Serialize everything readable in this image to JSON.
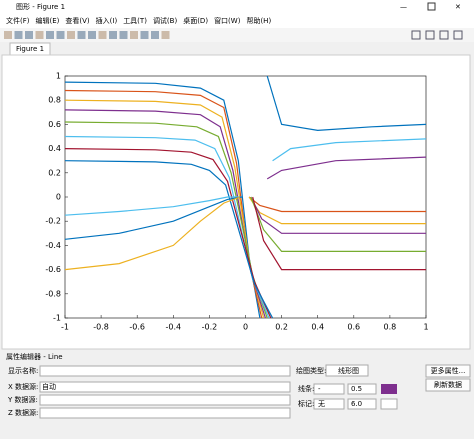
{
  "window": {
    "title": "图形 - Figure 1"
  },
  "menu": [
    "文件(F)",
    "编辑(E)",
    "查看(V)",
    "插入(I)",
    "工具(T)",
    "调试(B)",
    "桌面(D)",
    "窗口(W)",
    "帮助(H)"
  ],
  "tab": "Figure 1",
  "chart_data": {
    "type": "line",
    "xlim": [
      -1,
      1
    ],
    "ylim": [
      -1,
      1
    ],
    "xticks": [
      -1,
      -0.8,
      -0.6,
      -0.4,
      -0.2,
      0,
      0.2,
      0.4,
      0.6,
      0.8,
      1
    ],
    "yticks": [
      -1,
      -0.8,
      -0.6,
      -0.4,
      -0.2,
      0,
      0.2,
      0.4,
      0.6,
      0.8,
      1
    ],
    "series": [
      {
        "color": "#0072bd",
        "x": [
          -1,
          -0.5,
          -0.25,
          -0.12,
          -0.04,
          0.02,
          0.08
        ],
        "values": [
          0.95,
          0.94,
          0.9,
          0.8,
          0.3,
          -0.5,
          -1
        ]
      },
      {
        "color": "#d95319",
        "x": [
          -1,
          -0.5,
          -0.25,
          -0.12,
          -0.05,
          0.02,
          0.09
        ],
        "values": [
          0.88,
          0.87,
          0.84,
          0.74,
          0.28,
          -0.55,
          -1
        ]
      },
      {
        "color": "#edb120",
        "x": [
          -1,
          -0.5,
          -0.25,
          -0.13,
          -0.06,
          0.03,
          0.1
        ],
        "values": [
          0.8,
          0.79,
          0.76,
          0.66,
          0.25,
          -0.6,
          -1
        ]
      },
      {
        "color": "#7e2f8e",
        "x": [
          -1,
          -0.5,
          -0.25,
          -0.14,
          -0.07,
          0.03,
          0.11
        ],
        "values": [
          0.72,
          0.71,
          0.68,
          0.58,
          0.22,
          -0.62,
          -1
        ]
      },
      {
        "color": "#77ac30",
        "x": [
          -1,
          -0.5,
          -0.27,
          -0.15,
          -0.08,
          0.04,
          0.12
        ],
        "values": [
          0.62,
          0.61,
          0.58,
          0.5,
          0.2,
          -0.65,
          -1
        ]
      },
      {
        "color": "#4dbeee",
        "x": [
          -1,
          -0.5,
          -0.28,
          -0.17,
          -0.09,
          0.04,
          0.13
        ],
        "values": [
          0.5,
          0.49,
          0.47,
          0.4,
          0.16,
          -0.68,
          -1
        ]
      },
      {
        "color": "#a2142f",
        "x": [
          -1,
          -0.5,
          -0.3,
          -0.18,
          -0.1,
          0.05,
          0.14
        ],
        "values": [
          0.4,
          0.39,
          0.37,
          0.31,
          0.13,
          -0.7,
          -1
        ]
      },
      {
        "color": "#0072bd",
        "x": [
          -1,
          -0.5,
          -0.3,
          -0.2,
          -0.11,
          0.05,
          0.15
        ],
        "values": [
          0.3,
          0.29,
          0.27,
          0.22,
          0.1,
          -0.72,
          -1
        ]
      },
      {
        "color": "#d95319",
        "x": [
          0.02,
          0.08,
          0.2,
          0.5,
          1
        ],
        "values": [
          0,
          -0.07,
          -0.12,
          -0.12,
          -0.12
        ]
      },
      {
        "color": "#edb120",
        "x": [
          0.02,
          0.08,
          0.2,
          0.5,
          1
        ],
        "values": [
          0,
          -0.13,
          -0.22,
          -0.22,
          -0.22
        ]
      },
      {
        "color": "#7e2f8e",
        "x": [
          0.03,
          0.09,
          0.2,
          0.5,
          1
        ],
        "values": [
          0,
          -0.18,
          -0.3,
          -0.3,
          -0.3
        ]
      },
      {
        "color": "#77ac30",
        "x": [
          0.03,
          0.1,
          0.2,
          0.5,
          1
        ],
        "values": [
          0,
          -0.27,
          -0.45,
          -0.45,
          -0.45
        ]
      },
      {
        "color": "#a2142f",
        "x": [
          0.04,
          0.1,
          0.2,
          0.5,
          1
        ],
        "values": [
          0,
          -0.36,
          -0.6,
          -0.6,
          -0.6
        ]
      },
      {
        "color": "#4dbeee",
        "x": [
          -1,
          -0.7,
          -0.4,
          -0.2,
          -0.1,
          -0.02
        ],
        "values": [
          -0.15,
          -0.12,
          -0.08,
          -0.03,
          0,
          0
        ]
      },
      {
        "color": "#0072bd",
        "x": [
          -1,
          -0.7,
          -0.4,
          -0.2,
          -0.1,
          -0.02
        ],
        "values": [
          -0.35,
          -0.3,
          -0.2,
          -0.08,
          -0.02,
          0
        ]
      },
      {
        "color": "#edb120",
        "x": [
          -1,
          -0.7,
          -0.4,
          -0.25,
          -0.12,
          -0.03
        ],
        "values": [
          -0.6,
          -0.55,
          -0.4,
          -0.2,
          -0.05,
          0
        ]
      },
      {
        "color": "#0072bd",
        "x": [
          0.12,
          0.2,
          0.4,
          0.7,
          1
        ],
        "values": [
          1,
          0.6,
          0.55,
          0.58,
          0.6
        ]
      },
      {
        "color": "#4dbeee",
        "x": [
          0.15,
          0.25,
          0.5,
          1
        ],
        "values": [
          0.3,
          0.4,
          0.45,
          0.48
        ]
      },
      {
        "color": "#7e2f8e",
        "x": [
          0.12,
          0.2,
          0.5,
          1
        ],
        "values": [
          0.15,
          0.22,
          0.3,
          0.33
        ]
      }
    ]
  },
  "property_editor": {
    "title": "属性编辑器 - Line",
    "display_name": "显示名称:",
    "plot_type": "绘图类型:",
    "plot_type_value": "线形图",
    "more": "更多属性...",
    "refresh": "刷新数据",
    "x_source": "X 数据源:",
    "x_source_value": "自动",
    "y_source": "Y 数据源:",
    "z_source": "Z 数据源:",
    "line": "线条:",
    "line_style": "-",
    "line_width": "0.5",
    "marker": "标记:",
    "marker_value": "无",
    "marker_size": "6.0"
  }
}
